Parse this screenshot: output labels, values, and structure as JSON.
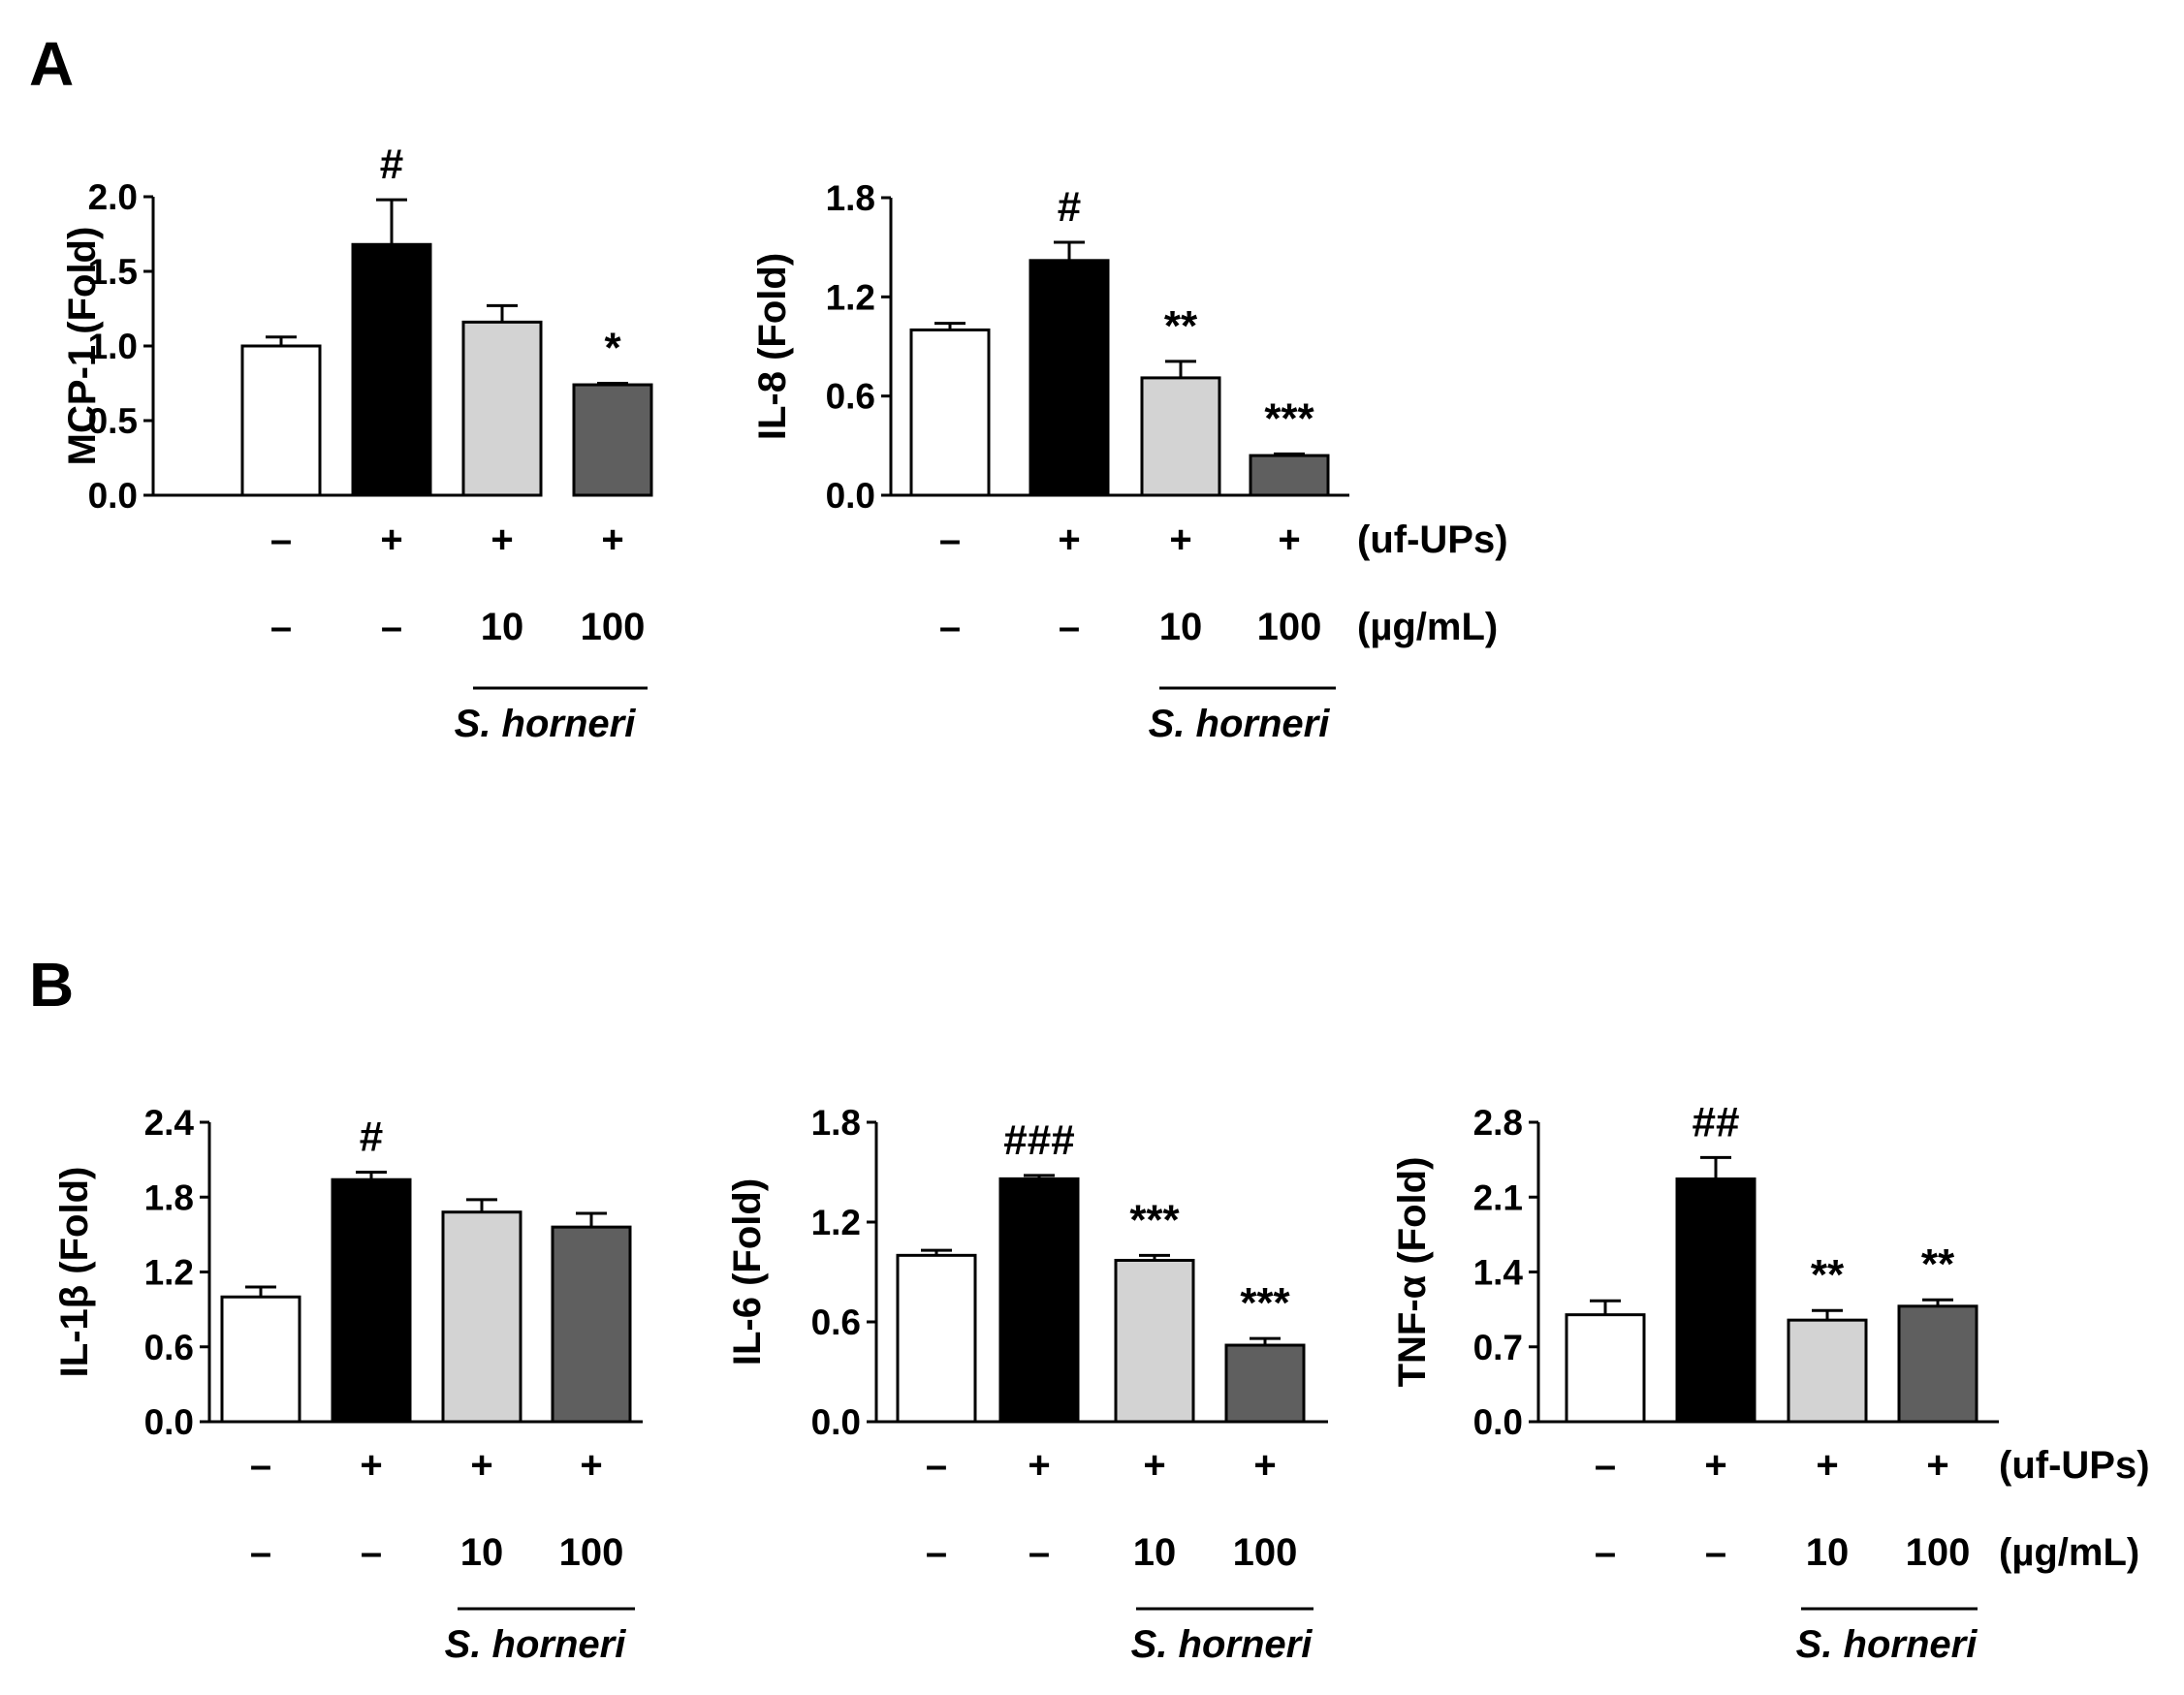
{
  "panels": [
    {
      "label": "A"
    },
    {
      "label": "B"
    }
  ],
  "treatment_rows": {
    "uf_label": "(uf-UPs)",
    "conc_label": "(µg/mL)",
    "uf_values": [
      "–",
      "+",
      "+",
      "+"
    ],
    "conc_values": [
      "–",
      "–",
      "10",
      "100"
    ],
    "species": "S. horneri"
  },
  "colors": {
    "control": "#ffffff",
    "uf_ups": "#000000",
    "sh_10": "#d3d3d3",
    "sh_100": "#5f5f5f"
  },
  "chart_data": [
    {
      "type": "bar",
      "panel": "A",
      "ylabel": "MCP-1 (Fold)",
      "ylim": [
        0,
        2.0
      ],
      "yticks": [
        "0.0",
        "0.5",
        "1.0",
        "1.5",
        "2.0"
      ],
      "ytick_values": [
        0,
        0.5,
        1.0,
        1.5,
        2.0
      ],
      "categories": [
        "Control",
        "uf-UPs",
        "uf-UPs + S. horneri 10",
        "uf-UPs + S. horneri 100"
      ],
      "values": [
        1.0,
        1.68,
        1.16,
        0.74
      ],
      "errors": [
        0.06,
        0.3,
        0.11,
        0.01
      ],
      "significance": [
        "",
        "#",
        "",
        "*"
      ]
    },
    {
      "type": "bar",
      "panel": "A",
      "ylabel": "IL-8 (Fold)",
      "ylim": [
        0,
        1.8
      ],
      "yticks": [
        "0.0",
        "0.6",
        "1.2",
        "1.8"
      ],
      "ytick_values": [
        0,
        0.6,
        1.2,
        1.8
      ],
      "categories": [
        "Control",
        "uf-UPs",
        "uf-UPs + S. horneri 10",
        "uf-UPs + S. horneri 100"
      ],
      "values": [
        1.0,
        1.42,
        0.71,
        0.24
      ],
      "errors": [
        0.04,
        0.11,
        0.1,
        0.01
      ],
      "significance": [
        "",
        "#",
        "**",
        "***"
      ]
    },
    {
      "type": "bar",
      "panel": "B",
      "ylabel": "IL-1β (Fold)",
      "ylim": [
        0,
        2.4
      ],
      "yticks": [
        "0.0",
        "0.6",
        "1.2",
        "1.8",
        "2.4"
      ],
      "ytick_values": [
        0,
        0.6,
        1.2,
        1.8,
        2.4
      ],
      "categories": [
        "Control",
        "uf-UPs",
        "uf-UPs + S. horneri 10",
        "uf-UPs + S. horneri 100"
      ],
      "values": [
        1.0,
        1.94,
        1.68,
        1.56
      ],
      "errors": [
        0.08,
        0.06,
        0.1,
        0.11
      ],
      "significance": [
        "",
        "#",
        "",
        ""
      ]
    },
    {
      "type": "bar",
      "panel": "B",
      "ylabel": "IL-6 (Fold)",
      "ylim": [
        0,
        1.8
      ],
      "yticks": [
        "0.0",
        "0.6",
        "1.2",
        "1.8"
      ],
      "ytick_values": [
        0,
        0.6,
        1.2,
        1.8
      ],
      "categories": [
        "Control",
        "uf-UPs",
        "uf-UPs + S. horneri 10",
        "uf-UPs + S. horneri 100"
      ],
      "values": [
        1.0,
        1.46,
        0.97,
        0.46
      ],
      "errors": [
        0.03,
        0.02,
        0.03,
        0.04
      ],
      "significance": [
        "",
        "###",
        "***",
        "***"
      ]
    },
    {
      "type": "bar",
      "panel": "B",
      "ylabel": "TNF-α (Fold)",
      "ylim": [
        0,
        2.8
      ],
      "yticks": [
        "0.0",
        "0.7",
        "1.4",
        "2.1",
        "2.8"
      ],
      "ytick_values": [
        0,
        0.7,
        1.4,
        2.1,
        2.8
      ],
      "categories": [
        "Control",
        "uf-UPs",
        "uf-UPs + S. horneri 10",
        "uf-UPs + S. horneri 100"
      ],
      "values": [
        1.0,
        2.27,
        0.95,
        1.08
      ],
      "errors": [
        0.13,
        0.2,
        0.09,
        0.06
      ],
      "significance": [
        "",
        "##",
        "**",
        "**"
      ]
    }
  ]
}
